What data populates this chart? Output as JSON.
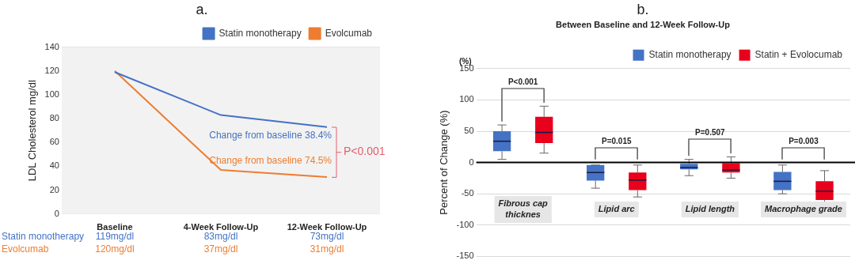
{
  "chart_data": [
    {
      "type": "line",
      "title": "a.",
      "ylabel": "LDL Cholesterol mg/dl",
      "categories": [
        "Baseline",
        "4-Week Follow-Up",
        "12-Week Follow-Up"
      ],
      "series": [
        {
          "name": "Statin monotherapy",
          "color": "#4472c4",
          "values": [
            119,
            83,
            73
          ],
          "value_labels": [
            "119mg/dl",
            "83mg/dl",
            "73mg/dl"
          ]
        },
        {
          "name": "Evolcumab",
          "color": "#ed7d31",
          "values": [
            120,
            37,
            31
          ],
          "value_labels": [
            "120mg/dl",
            "37mg/dl",
            "31mg/dl"
          ]
        }
      ],
      "ylim": [
        0,
        140
      ],
      "yticks": [
        0,
        20,
        40,
        60,
        80,
        100,
        120,
        140
      ],
      "grid": "y",
      "legend": "top right",
      "annotations": [
        "Change from baseline 38.4%",
        "Change from baseline 74.5%",
        "P<0.001"
      ]
    },
    {
      "type": "box",
      "title": "b.",
      "subtitle": "Between Baseline and 12-Week Follow-Up",
      "ylabel": "Percent of Change (%)",
      "categories": [
        "Fibrous cap thicknes",
        "Lipid arc",
        "Lipid length",
        "Macrophage grade"
      ],
      "series": [
        {
          "name": "Statin monotherapy",
          "color": "#4472c4",
          "boxes": [
            {
              "low": 5,
              "q1": 18,
              "median": 34,
              "q3": 50,
              "high": 60
            },
            {
              "low": -41,
              "q1": -29,
              "median": -16,
              "q3": -4,
              "high": -4
            },
            {
              "low": -21,
              "q1": -11,
              "median": -8,
              "q3": -2,
              "high": 5
            },
            {
              "low": -50,
              "q1": -44,
              "median": -30,
              "q3": -15,
              "high": -4
            }
          ]
        },
        {
          "name": "Statin + Evolocumab",
          "color": "#e8001c",
          "boxes": [
            {
              "low": 15,
              "q1": 31,
              "median": 48,
              "q3": 73,
              "high": 90
            },
            {
              "low": -55,
              "q1": -44,
              "median": -28,
              "q3": -16,
              "high": -4
            },
            {
              "low": -25,
              "q1": -16,
              "median": -12,
              "q3": -1,
              "high": 9
            },
            {
              "low": -67,
              "q1": -60,
              "median": -46,
              "q3": -30,
              "high": -13
            }
          ]
        }
      ],
      "ylim": [
        -150,
        150
      ],
      "yticks": [
        -150,
        -100,
        -50,
        0,
        50,
        100,
        150
      ],
      "grid": "y",
      "legend": "top right",
      "ref_lines": [
        {
          "axis": "y",
          "value": 0
        }
      ],
      "annotations": [
        "(%)",
        "P<0.001",
        "P=0.015",
        "P=0.507",
        "P=0.003"
      ]
    }
  ]
}
